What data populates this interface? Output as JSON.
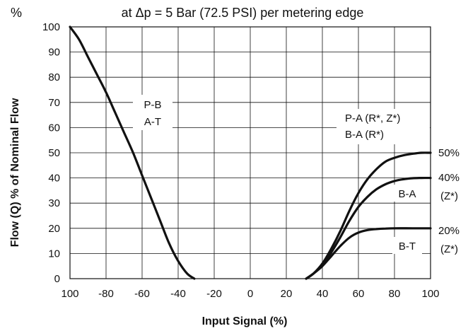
{
  "chart_data": {
    "type": "line",
    "title": "at Δp = 5 Bar (72.5 PSI) per metering edge",
    "y_unit": "%",
    "xlabel": "Input Signal (%)",
    "ylabel": "Flow (Q) % of Nominal Flow",
    "xlim": [
      -100,
      100
    ],
    "ylim": [
      0,
      100
    ],
    "x_ticks": [
      -100,
      -80,
      -60,
      -40,
      -20,
      0,
      20,
      40,
      60,
      80,
      100
    ],
    "x_tick_labels": [
      "100",
      "-80",
      "-60",
      "-40",
      "-20",
      "0",
      "20",
      "40",
      "60",
      "80",
      "100"
    ],
    "y_ticks": [
      0,
      10,
      20,
      30,
      40,
      50,
      60,
      70,
      80,
      90,
      100
    ],
    "grid": true,
    "series": [
      {
        "name": "P-B A-T",
        "points": [
          [
            -100,
            100
          ],
          [
            -95,
            95
          ],
          [
            -90,
            88
          ],
          [
            -85,
            81
          ],
          [
            -80,
            74
          ],
          [
            -75,
            66
          ],
          [
            -70,
            58
          ],
          [
            -65,
            50
          ],
          [
            -60,
            41
          ],
          [
            -55,
            32
          ],
          [
            -50,
            23
          ],
          [
            -45,
            14
          ],
          [
            -40,
            7
          ],
          [
            -35,
            2
          ],
          [
            -31,
            0
          ]
        ]
      },
      {
        "name": "50%",
        "points": [
          [
            31,
            0
          ],
          [
            35,
            2
          ],
          [
            40,
            6
          ],
          [
            45,
            12
          ],
          [
            50,
            19
          ],
          [
            55,
            27
          ],
          [
            60,
            34
          ],
          [
            65,
            39.5
          ],
          [
            70,
            43.5
          ],
          [
            75,
            46.5
          ],
          [
            80,
            48
          ],
          [
            85,
            49
          ],
          [
            90,
            49.6
          ],
          [
            95,
            50
          ],
          [
            100,
            50
          ]
        ]
      },
      {
        "name": "40%",
        "points": [
          [
            31,
            0
          ],
          [
            35,
            2
          ],
          [
            40,
            5.5
          ],
          [
            45,
            10.5
          ],
          [
            50,
            16.5
          ],
          [
            55,
            23
          ],
          [
            60,
            28.5
          ],
          [
            65,
            32.5
          ],
          [
            70,
            35.5
          ],
          [
            75,
            37.5
          ],
          [
            80,
            38.8
          ],
          [
            85,
            39.5
          ],
          [
            90,
            39.9
          ],
          [
            95,
            40
          ],
          [
            100,
            40
          ]
        ]
      },
      {
        "name": "20%",
        "points": [
          [
            31,
            0
          ],
          [
            35,
            2
          ],
          [
            40,
            5
          ],
          [
            45,
            9
          ],
          [
            50,
            13
          ],
          [
            55,
            16.3
          ],
          [
            60,
            18.3
          ],
          [
            65,
            19.3
          ],
          [
            70,
            19.7
          ],
          [
            75,
            19.9
          ],
          [
            80,
            20
          ],
          [
            90,
            20
          ],
          [
            100,
            20
          ]
        ]
      }
    ],
    "annotations": {
      "pb_line1": "P-B",
      "pb_line2": "A-T",
      "pa_line1": "P-A (R*, Z*)",
      "pa_line2": "B-A (R*)",
      "ba": "B-A",
      "bt": "B-T",
      "pct50": "50%",
      "pct40": "40%",
      "pct20": "20%",
      "z1": "(Z*)",
      "z2": "(Z*)"
    }
  }
}
